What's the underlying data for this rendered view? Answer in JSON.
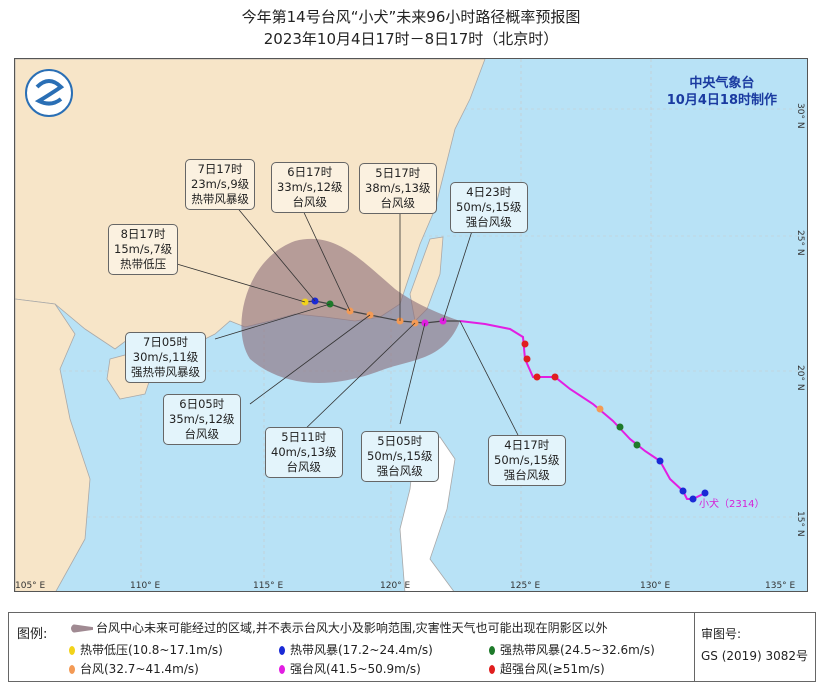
{
  "title": "今年第14号台风“小犬”未来96小时路径概率预报图",
  "subtitle": "2023年10月4日17时－8日17时（北京时）",
  "agency": {
    "name": "中央气象台",
    "issued": "10月4日18时制作"
  },
  "typhoon_label": "小犬（2314）",
  "axes": {
    "lon": [
      "105° E",
      "110° E",
      "115° E",
      "120° E",
      "125° E",
      "130° E",
      "135° E"
    ],
    "lat": [
      "30° N",
      "25° N",
      "20° N",
      "15° N"
    ]
  },
  "forecast_labels": [
    {
      "time": "8日17时",
      "wind": "15m/s,7级",
      "grade": "热带低压"
    },
    {
      "time": "7日17时",
      "wind": "23m/s,9级",
      "grade": "热带风暴级"
    },
    {
      "time": "6日17时",
      "wind": "33m/s,12级",
      "grade": "台风级"
    },
    {
      "time": "5日17时",
      "wind": "38m/s,13级",
      "grade": "台风级"
    },
    {
      "time": "4日23时",
      "wind": "50m/s,15级",
      "grade": "强台风级"
    },
    {
      "time": "7日05时",
      "wind": "30m/s,11级",
      "grade": "强热带风暴级"
    },
    {
      "time": "6日05时",
      "wind": "35m/s,12级",
      "grade": "台风级"
    },
    {
      "time": "5日11时",
      "wind": "40m/s,13级",
      "grade": "台风级"
    },
    {
      "time": "5日05时",
      "wind": "50m/s,15级",
      "grade": "强台风级"
    },
    {
      "time": "4日17时",
      "wind": "50m/s,15级",
      "grade": "强台风级"
    }
  ],
  "legend": {
    "title": "图例:",
    "area": "台风中心未来可能经过的区域,并不表示台风大小及影响范围,灾害性天气也可能出现在阴影区以外",
    "items": [
      {
        "label": "热带低压(10.8~17.1m/s)",
        "color": "#f2d31a"
      },
      {
        "label": "热带风暴(17.2~24.4m/s)",
        "color": "#1a2ad6"
      },
      {
        "label": "强热带风暴(24.5~32.6m/s)",
        "color": "#1e7a2a"
      },
      {
        "label": "台风(32.7~41.4m/s)",
        "color": "#f39a55"
      },
      {
        "label": "强台风(41.5~50.9m/s)",
        "color": "#e21ee2"
      },
      {
        "label": "超强台风(≥51m/s)",
        "color": "#e01e1e"
      }
    ],
    "approval_label": "审图号:",
    "approval_no": "GS (2019) 3082号"
  }
}
